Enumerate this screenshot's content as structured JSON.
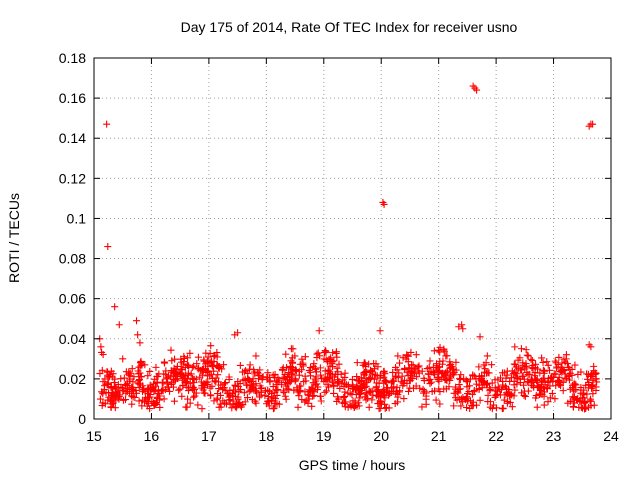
{
  "chart_data": {
    "type": "scatter",
    "title": "Day 175 of 2014, Rate Of TEC Index for receiver usno",
    "xlabel": "GPS time / hours",
    "ylabel": "ROTI / TECUs",
    "xlim": [
      15,
      24
    ],
    "ylim": [
      0,
      0.18
    ],
    "xticks": [
      "15",
      "16",
      "17",
      "18",
      "19",
      "20",
      "21",
      "22",
      "23",
      "24"
    ],
    "yticks": [
      "0",
      "0.02",
      "0.04",
      "0.06",
      "0.08",
      "0.1",
      "0.12",
      "0.14",
      "0.16",
      "0.18"
    ],
    "grid": true,
    "marker": "+",
    "marker_color": "#ff0000",
    "series": [
      {
        "name": "ROTI",
        "points": [
          [
            15.22,
            0.147
          ],
          [
            15.24,
            0.086
          ],
          [
            15.36,
            0.056
          ],
          [
            15.44,
            0.047
          ],
          [
            15.74,
            0.049
          ],
          [
            15.76,
            0.042
          ],
          [
            15.8,
            0.038
          ],
          [
            15.1,
            0.04
          ],
          [
            15.12,
            0.036
          ],
          [
            15.5,
            0.03
          ],
          [
            20.03,
            0.108
          ],
          [
            20.05,
            0.107
          ],
          [
            21.6,
            0.166
          ],
          [
            21.63,
            0.165
          ],
          [
            21.66,
            0.164
          ],
          [
            23.62,
            0.146
          ],
          [
            23.65,
            0.147
          ],
          [
            23.68,
            0.147
          ],
          [
            17.45,
            0.042
          ],
          [
            17.5,
            0.043
          ],
          [
            18.92,
            0.044
          ],
          [
            19.98,
            0.044
          ],
          [
            21.35,
            0.046
          ],
          [
            21.4,
            0.047
          ],
          [
            21.42,
            0.045
          ],
          [
            21.72,
            0.041
          ],
          [
            23.62,
            0.037
          ],
          [
            23.65,
            0.036
          ]
        ],
        "cluster": {
          "x_range": [
            15.1,
            23.75
          ],
          "typical_range": [
            0.005,
            0.035
          ],
          "median": 0.018,
          "count": 1400
        }
      }
    ]
  }
}
